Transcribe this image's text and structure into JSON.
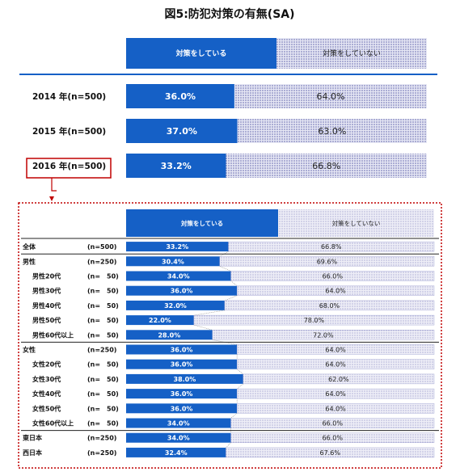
{
  "title": "図5:防犯対策の有無(SA)",
  "chart_data": [
    {
      "type": "bar",
      "stacked": true,
      "orientation": "horizontal",
      "series_names": [
        "対策をしている",
        "対策をしていない"
      ],
      "categories": [
        "2014 年(n=500)",
        "2015 年(n=500)",
        "2016 年(n=500)"
      ],
      "series": [
        {
          "name": "対策をしている",
          "values": [
            36.0,
            37.0,
            33.2
          ],
          "color": "#1560c6"
        },
        {
          "name": "対策をしていない",
          "values": [
            64.0,
            63.0,
            66.8
          ],
          "color": "#c7c9e6"
        }
      ],
      "value_format": "%"
    },
    {
      "type": "bar",
      "stacked": true,
      "orientation": "horizontal",
      "series_names": [
        "対策をしている",
        "対策をしていない"
      ],
      "rows": [
        {
          "label": "全体",
          "n": "(n=500)",
          "indent": false,
          "values": [
            33.2,
            66.8
          ]
        },
        {
          "label": "男性",
          "n": "(n=250)",
          "indent": false,
          "values": [
            30.4,
            69.6
          ]
        },
        {
          "label": "男性20代",
          "n": "(n=　50)",
          "indent": true,
          "values": [
            34.0,
            66.0
          ]
        },
        {
          "label": "男性30代",
          "n": "(n=　50)",
          "indent": true,
          "values": [
            36.0,
            64.0
          ]
        },
        {
          "label": "男性40代",
          "n": "(n=　50)",
          "indent": true,
          "values": [
            32.0,
            68.0
          ]
        },
        {
          "label": "男性50代",
          "n": "(n=　50)",
          "indent": true,
          "values": [
            22.0,
            78.0
          ]
        },
        {
          "label": "男性60代以上",
          "n": "(n=　50)",
          "indent": true,
          "values": [
            28.0,
            72.0
          ]
        },
        {
          "label": "女性",
          "n": "(n=250)",
          "indent": false,
          "values": [
            36.0,
            64.0
          ]
        },
        {
          "label": "女性20代",
          "n": "(n=　50)",
          "indent": true,
          "values": [
            36.0,
            64.0
          ]
        },
        {
          "label": "女性30代",
          "n": "(n=　50)",
          "indent": true,
          "values": [
            38.0,
            62.0
          ]
        },
        {
          "label": "女性40代",
          "n": "(n=　50)",
          "indent": true,
          "values": [
            36.0,
            64.0
          ]
        },
        {
          "label": "女性50代",
          "n": "(n=　50)",
          "indent": true,
          "values": [
            36.0,
            64.0
          ]
        },
        {
          "label": "女性60代以上",
          "n": "(n=　50)",
          "indent": true,
          "values": [
            34.0,
            66.0
          ]
        },
        {
          "label": "東日本",
          "n": "(n=250)",
          "indent": false,
          "values": [
            34.0,
            66.0
          ]
        },
        {
          "label": "西日本",
          "n": "(n=250)",
          "indent": false,
          "values": [
            32.4,
            67.6
          ]
        }
      ],
      "value_format": "%"
    }
  ]
}
